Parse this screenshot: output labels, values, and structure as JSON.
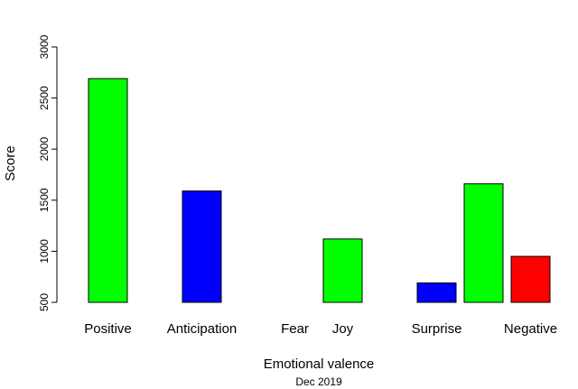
{
  "chart_data": {
    "type": "bar",
    "title": "",
    "xlabel": "Emotional valence",
    "ylabel": "Score",
    "subtitle": "Dec 2019",
    "ylim": [
      500,
      3000
    ],
    "yticks": [
      500,
      1000,
      1500,
      2000,
      2500,
      3000
    ],
    "grid": false,
    "legend": "none",
    "bars": [
      {
        "label": "Positive",
        "value": 2690,
        "color": "#00ff00"
      },
      {
        "label": "Anticipation",
        "value": 1590,
        "color": "#0000ff"
      },
      {
        "label": "Fear",
        "value": 500,
        "color": "#00ff00"
      },
      {
        "label": "Joy",
        "value": 1120,
        "color": "#00ff00"
      },
      {
        "label": "Surprise",
        "value": 690,
        "color": "#0000ff"
      },
      {
        "label": "",
        "value": 1660,
        "color": "#00ff00"
      },
      {
        "label": "Negative",
        "value": 950,
        "color": "#ff0000"
      }
    ]
  }
}
